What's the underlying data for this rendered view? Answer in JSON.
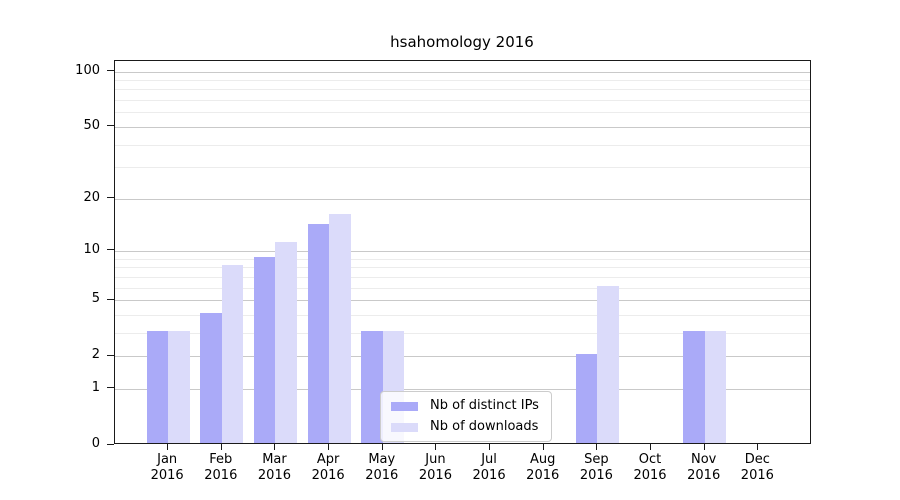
{
  "chart_data": {
    "type": "bar",
    "title": "hsahomology 2016",
    "year": "2016",
    "months": [
      "Jan",
      "Feb",
      "Mar",
      "Apr",
      "May",
      "Jun",
      "Jul",
      "Aug",
      "Sep",
      "Oct",
      "Nov",
      "Dec"
    ],
    "series": [
      {
        "name": "Nb of distinct IPs",
        "color": "#aaaaf8",
        "values": [
          3,
          4,
          9,
          14,
          3,
          0,
          0,
          0,
          2,
          0,
          3,
          0
        ]
      },
      {
        "name": "Nb of downloads",
        "color": "#dbdbfa",
        "values": [
          3,
          8,
          11,
          16,
          3,
          0,
          0,
          0,
          6,
          0,
          3,
          0
        ]
      }
    ],
    "yscale": "log1p",
    "ylim": [
      0,
      115
    ],
    "y_major_ticks": [
      0,
      1,
      2,
      5,
      10,
      20,
      50,
      100
    ],
    "y_minor_gridlines": [
      3,
      4,
      6,
      7,
      8,
      9,
      30,
      40,
      60,
      70,
      80,
      90
    ],
    "grid": "both",
    "legend_position": "lower center",
    "colors": {
      "axis": "#1a1a1a",
      "major_grid": "#c9c9c9",
      "minor_grid": "#ececec",
      "legend_border": "#cccccc",
      "background": "#ffffff",
      "text": "#000000"
    }
  }
}
